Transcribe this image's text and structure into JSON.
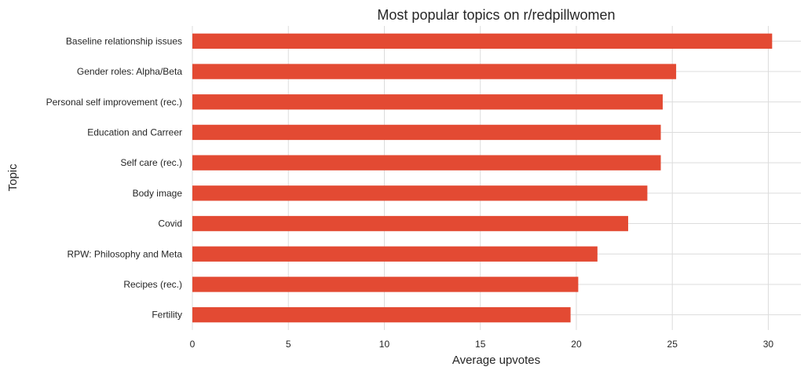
{
  "chart_data": {
    "type": "bar",
    "orientation": "horizontal",
    "title": "Most popular topics on r/redpillwomen",
    "xlabel": "Average upvotes",
    "ylabel": "Topic",
    "categories": [
      "Baseline relationship issues",
      "Gender roles: Alpha/Beta",
      "Personal self improvement (rec.)",
      "Education and Carreer",
      "Self care (rec.)",
      "Body image",
      "Covid",
      "RPW: Philosophy and Meta",
      "Recipes (rec.)",
      "Fertility"
    ],
    "values": [
      30.2,
      25.2,
      24.5,
      24.4,
      24.4,
      23.7,
      22.7,
      21.1,
      20.1,
      19.7
    ],
    "xlim": [
      0,
      31.7
    ],
    "xticks": [
      0,
      5,
      10,
      15,
      20,
      25,
      30
    ],
    "grid": true,
    "bar_color": "#e34a33"
  }
}
